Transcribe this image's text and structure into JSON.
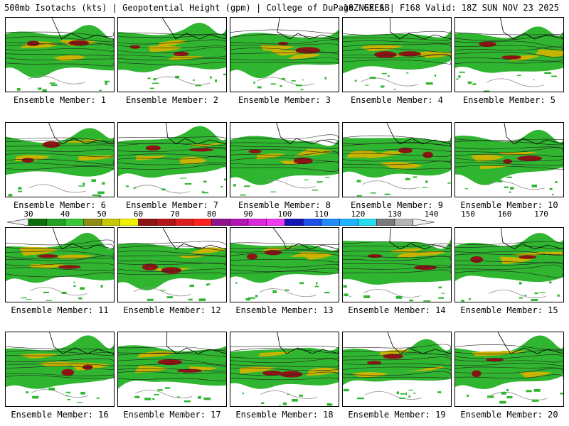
{
  "header": {
    "left": "500mb Isotachs (kts) | Geopotential Height (gpm) | College of DuPage NEXLAB",
    "right": "18Z GEFS | F168 Valid: 18Z SUN NOV 23 2025"
  },
  "members": [
    "Ensemble Member: 1",
    "Ensemble Member: 2",
    "Ensemble Member: 3",
    "Ensemble Member: 4",
    "Ensemble Member: 5",
    "Ensemble Member: 6",
    "Ensemble Member: 7",
    "Ensemble Member: 8",
    "Ensemble Member: 9",
    "Ensemble Member: 10",
    "Ensemble Member: 11",
    "Ensemble Member: 12",
    "Ensemble Member: 13",
    "Ensemble Member: 14",
    "Ensemble Member: 15",
    "Ensemble Member: 16",
    "Ensemble Member: 17",
    "Ensemble Member: 18",
    "Ensemble Member: 19",
    "Ensemble Member: 20"
  ],
  "legend": {
    "ticks": [
      "30",
      "40",
      "50",
      "60",
      "70",
      "80",
      "90",
      "100",
      "110",
      "120",
      "130",
      "140",
      "150",
      "160",
      "170"
    ],
    "colors": [
      "#0a6e0a",
      "#22a022",
      "#37c837",
      "#8c8c14",
      "#c8c800",
      "#f0f000",
      "#8c1414",
      "#b41414",
      "#dc1e1e",
      "#ff2020",
      "#8c148c",
      "#b414b4",
      "#dc28dc",
      "#f03cf0",
      "#1414b4",
      "#1e50e6",
      "#1e8cff",
      "#1eb4ff",
      "#28dcf0",
      "#7a7a7a",
      "#b4b4b4"
    ],
    "end_color": "#f0f0f0"
  }
}
